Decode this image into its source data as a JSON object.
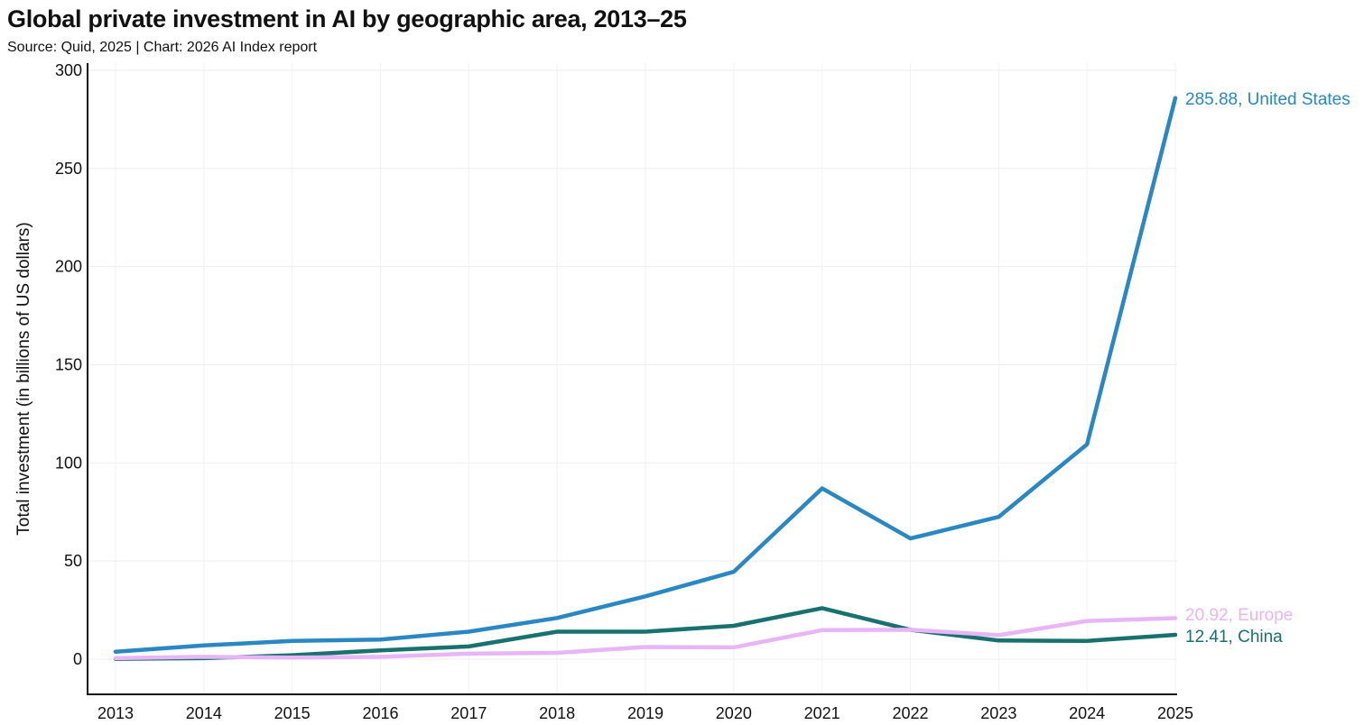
{
  "title": "Global private investment in AI by geographic area, 2013–25",
  "subtitle": "Source: Quid, 2025 | Chart: 2026 AI Index report",
  "chart_data": {
    "type": "line",
    "title": "Global private investment in AI by geographic area, 2013–25",
    "subtitle": "Source: Quid, 2025 | Chart: 2026 AI Index report",
    "xlabel": "",
    "ylabel": "Total investment (in billions of US dollars)",
    "ylim": [
      -18,
      305
    ],
    "yticks": [
      0,
      50,
      100,
      150,
      200,
      250,
      300
    ],
    "grid": true,
    "categories": [
      "2013",
      "2014",
      "2015",
      "2016",
      "2017",
      "2018",
      "2019",
      "2020",
      "2021",
      "2022",
      "2023",
      "2024",
      "2025"
    ],
    "series": [
      {
        "name": "China",
        "color": "#17726f",
        "values": [
          0.2,
          0.5,
          2.0,
          4.5,
          6.5,
          14.0,
          14.0,
          17.0,
          26.0,
          15.0,
          9.5,
          9.3,
          12.41
        ],
        "end_label": "12.41, China"
      },
      {
        "name": "Europe",
        "color": "#e8b6f7",
        "values": [
          0.5,
          1.2,
          0.8,
          1.2,
          2.8,
          3.2,
          6.2,
          6.0,
          14.8,
          15.0,
          12.2,
          19.5,
          20.92
        ],
        "end_label": "20.92, Europe"
      },
      {
        "name": "United States",
        "color": "#2988c4",
        "values": [
          3.8,
          7.0,
          9.3,
          10.0,
          14.0,
          21.0,
          32.0,
          44.5,
          87.0,
          61.5,
          72.5,
          109.5,
          285.88
        ],
        "end_label": "285.88, United States"
      }
    ]
  }
}
